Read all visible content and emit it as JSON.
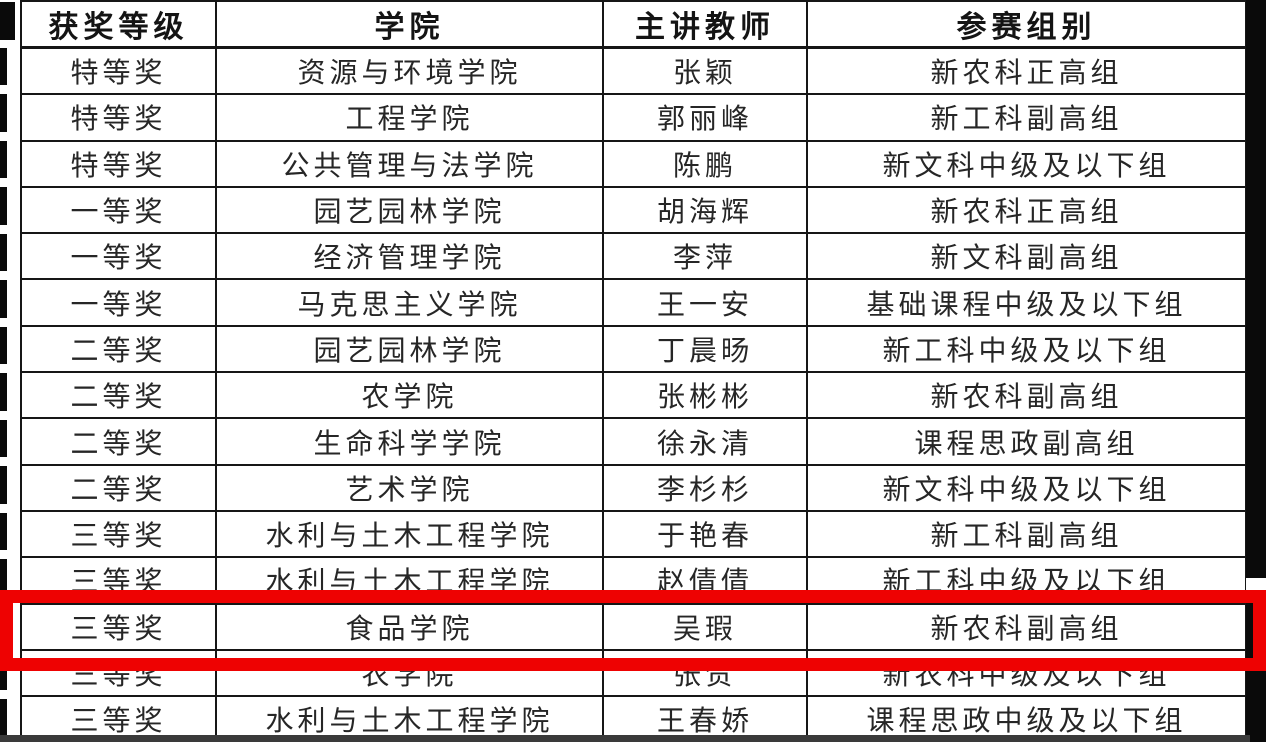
{
  "document": {
    "table": {
      "headers": [
        "获奖等级",
        "学院",
        "主讲教师",
        "参赛组别"
      ],
      "rows": [
        [
          "特等奖",
          "资源与环境学院",
          "张颖",
          "新农科正高组"
        ],
        [
          "特等奖",
          "工程学院",
          "郭丽峰",
          "新工科副高组"
        ],
        [
          "特等奖",
          "公共管理与法学院",
          "陈鹏",
          "新文科中级及以下组"
        ],
        [
          "一等奖",
          "园艺园林学院",
          "胡海辉",
          "新农科正高组"
        ],
        [
          "一等奖",
          "经济管理学院",
          "李萍",
          "新文科副高组"
        ],
        [
          "一等奖",
          "马克思主义学院",
          "王一安",
          "基础课程中级及以下组"
        ],
        [
          "二等奖",
          "园艺园林学院",
          "丁晨旸",
          "新工科中级及以下组"
        ],
        [
          "二等奖",
          "农学院",
          "张彬彬",
          "新农科副高组"
        ],
        [
          "二等奖",
          "生命科学学院",
          "徐永清",
          "课程思政副高组"
        ],
        [
          "二等奖",
          "艺术学院",
          "李杉杉",
          "新文科中级及以下组"
        ],
        [
          "三等奖",
          "水利与土木工程学院",
          "于艳春",
          "新工科副高组"
        ],
        [
          "三等奖",
          "水利与土木工程学院",
          "赵倩倩",
          "新工科中级及以下组"
        ],
        [
          "三等奖",
          "食品学院",
          "吴瑕",
          "新农科副高组"
        ],
        [
          "三等奖",
          "农学院",
          "张贺",
          "新农科中级及以下组"
        ],
        [
          "三等奖",
          "水利与土木工程学院",
          "王春娇",
          "课程思政中级及以下组"
        ]
      ],
      "highlighted_row_index": 12
    },
    "colors": {
      "highlight_red": "#ee0202",
      "table_border": "#161616",
      "text": "#262626"
    }
  }
}
